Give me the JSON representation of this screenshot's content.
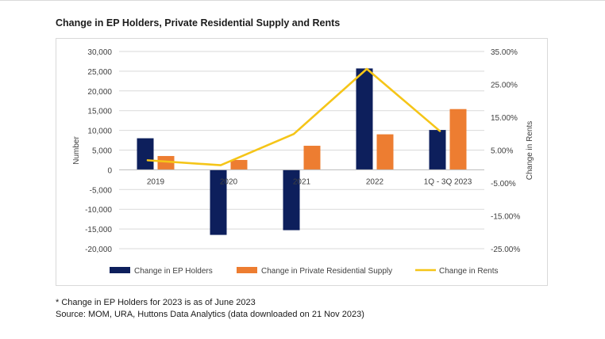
{
  "chart_data": {
    "type": "bar",
    "title": "Change in EP Holders, Private Residential Supply and Rents",
    "categories": [
      "2019",
      "2020",
      "2021",
      "2022",
      "1Q - 3Q 2023"
    ],
    "series": [
      {
        "name": "Change in EP Holders",
        "type": "bar",
        "axis": "left",
        "color": "#0d1f5c",
        "values": [
          8000,
          -16500,
          -15300,
          25700,
          10100
        ]
      },
      {
        "name": "Change in Private Residential Supply",
        "type": "bar",
        "axis": "left",
        "color": "#ed7d31",
        "values": [
          3500,
          2500,
          6100,
          9000,
          15400
        ]
      },
      {
        "name": "Change in Rents",
        "type": "line",
        "axis": "right",
        "color": "#f5c518",
        "values": [
          1.9,
          0.4,
          9.9,
          29.7,
          10.8
        ]
      }
    ],
    "ylabel": "Number",
    "y2label": "Change in Rents",
    "ylim": [
      -20000,
      30000
    ],
    "y2lim": [
      -25,
      35
    ],
    "yticks": [
      "30,000",
      "25,000",
      "20,000",
      "15,000",
      "10,000",
      "5,000",
      "0",
      "-5,000",
      "-10,000",
      "-15,000",
      "-20,000"
    ],
    "y2ticks": [
      "35.00%",
      "25.00%",
      "15.00%",
      "5.00%",
      "-5.00%",
      "-15.00%",
      "-25.00%"
    ],
    "grid": true,
    "legend_position": "bottom"
  },
  "footnotes": {
    "note": "* Change in EP Holders for 2023 is as of June 2023",
    "source": "Source: MOM, URA, Huttons Data Analytics (data downloaded on 21 Nov 2023)"
  }
}
